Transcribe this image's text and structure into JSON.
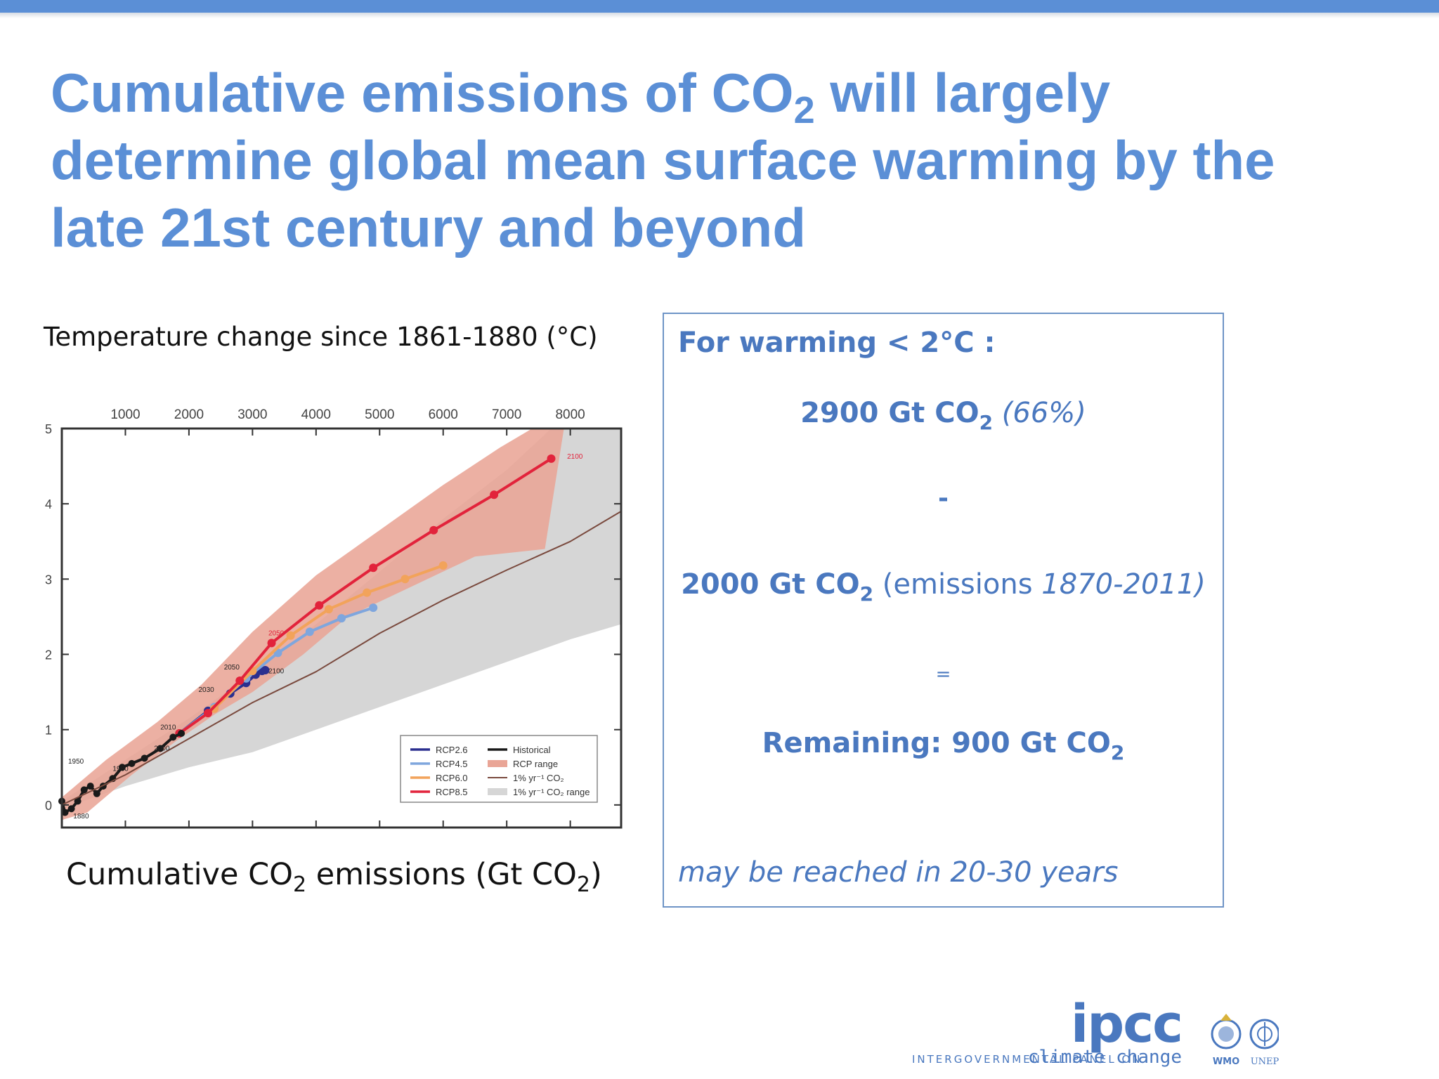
{
  "slide": {
    "title_line1_pre": "Cumulative emissions of CO",
    "title_sub": "2",
    "title_line1_post": " will largely",
    "title_line2": "determine global mean surface warming by the",
    "title_line3": "late 21st century and beyond",
    "colors": {
      "title": "#5b8fd6",
      "box_text": "#4a78bf",
      "box_border": "#6e94c6",
      "top_bar": "#5b8fd6"
    }
  },
  "chart_labels": {
    "y_title": "Temperature change since 1861-1880 (°C)",
    "x_title_pre": "Cumulative CO",
    "x_title_sub1": "2",
    "x_title_mid": " emissions (Gt CO",
    "x_title_sub2": "2",
    "x_title_post": ")"
  },
  "chart_data": {
    "type": "line",
    "xlim": [
      0,
      8800
    ],
    "ylim": [
      -0.3,
      5
    ],
    "x_ticks": [
      1000,
      2000,
      3000,
      4000,
      5000,
      6000,
      7000,
      8000
    ],
    "y_ticks": [
      0,
      1,
      2,
      3,
      4,
      5
    ],
    "legend_position": "bottom-right",
    "series": [
      {
        "name": "RCP2.6",
        "color": "#2b2f8f",
        "points": [
          [
            1850,
            0.95
          ],
          [
            2300,
            1.25
          ],
          [
            2650,
            1.48
          ],
          [
            2900,
            1.62
          ],
          [
            3050,
            1.73
          ],
          [
            3150,
            1.78
          ],
          [
            3200,
            1.79
          ]
        ]
      },
      {
        "name": "RCP4.5",
        "color": "#7fa6dd",
        "points": [
          [
            1850,
            0.95
          ],
          [
            2400,
            1.3
          ],
          [
            2900,
            1.68
          ],
          [
            3400,
            2.02
          ],
          [
            3900,
            2.3
          ],
          [
            4400,
            2.48
          ],
          [
            4900,
            2.62
          ]
        ]
      },
      {
        "name": "RCP6.0",
        "color": "#f2a35a",
        "points": [
          [
            1850,
            0.95
          ],
          [
            2400,
            1.28
          ],
          [
            3000,
            1.78
          ],
          [
            3600,
            2.25
          ],
          [
            4200,
            2.6
          ],
          [
            4800,
            2.82
          ],
          [
            5400,
            3.0
          ],
          [
            6000,
            3.18
          ]
        ]
      },
      {
        "name": "RCP8.5",
        "color": "#e2233b",
        "points": [
          [
            1850,
            0.95
          ],
          [
            2300,
            1.22
          ],
          [
            2800,
            1.65
          ],
          [
            3300,
            2.15
          ],
          [
            4050,
            2.65
          ],
          [
            4900,
            3.15
          ],
          [
            5850,
            3.65
          ],
          [
            6800,
            4.12
          ],
          [
            7700,
            4.6
          ]
        ]
      },
      {
        "name": "Historical",
        "color": "#1a1a1a",
        "points": [
          [
            0,
            0.05
          ],
          [
            50,
            -0.1
          ],
          [
            150,
            -0.05
          ],
          [
            250,
            0.05
          ],
          [
            350,
            0.2
          ],
          [
            450,
            0.25
          ],
          [
            550,
            0.15
          ],
          [
            650,
            0.25
          ],
          [
            800,
            0.35
          ],
          [
            950,
            0.5
          ],
          [
            1100,
            0.55
          ],
          [
            1300,
            0.62
          ],
          [
            1550,
            0.75
          ],
          [
            1750,
            0.9
          ],
          [
            1880,
            0.95
          ]
        ]
      },
      {
        "name": "1% yr⁻¹ CO₂",
        "color": "#7a4a3e",
        "points": [
          [
            0,
            0
          ],
          [
            1000,
            0.4
          ],
          [
            2000,
            0.88
          ],
          [
            3000,
            1.36
          ],
          [
            4000,
            1.77
          ],
          [
            5000,
            2.28
          ],
          [
            6000,
            2.72
          ],
          [
            7000,
            3.12
          ],
          [
            8000,
            3.5
          ],
          [
            8800,
            3.9
          ]
        ]
      }
    ],
    "ranges": [
      {
        "name": "RCP range",
        "color": "#e9a596"
      },
      {
        "name": "1% yr⁻¹ CO₂ range",
        "color": "#d6d6d6"
      }
    ],
    "point_labels": [
      {
        "text": "1880",
        "x": 180,
        "y": -0.18
      },
      {
        "text": "1950",
        "x": 100,
        "y": 0.55
      },
      {
        "text": "1980",
        "x": 800,
        "y": 0.45
      },
      {
        "text": "2000",
        "x": 1450,
        "y": 0.72
      },
      {
        "text": "2010",
        "x": 1550,
        "y": 1.0
      },
      {
        "text": "2030",
        "x": 2150,
        "y": 1.5
      },
      {
        "text": "2050",
        "x": 2550,
        "y": 1.8
      },
      {
        "text": "2100",
        "x": 3250,
        "y": 1.75
      },
      {
        "text": "2050",
        "x": 3250,
        "y": 2.25
      },
      {
        "text": "2100",
        "x": 7950,
        "y": 4.6
      }
    ]
  },
  "info_box": {
    "heading": "For warming < 2°C :",
    "line1_value": "2900 Gt CO",
    "line1_sub": "2",
    "line1_pct": "(66%)",
    "minus": "-",
    "line2_value": "2000 Gt CO",
    "line2_sub": "2",
    "line2_paren_open": " (emissions ",
    "line2_years": "1870-2011)",
    "equals": "=",
    "remaining": "Remaining: 900 Gt CO",
    "remaining_sub": "2",
    "footnote": "may be reached in 20-30 years"
  },
  "footer": {
    "ipcc_logo": "ipcc",
    "org_name": "INTERGOVERNMENTAL PANEL ON",
    "org_name_strong": "climate change",
    "wmo": "WMO",
    "unep": "UNEP"
  }
}
